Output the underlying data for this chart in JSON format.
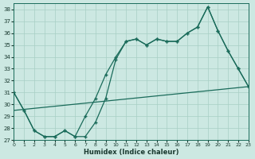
{
  "xlabel": "Humidex (Indice chaleur)",
  "bg_color": "#cce8e2",
  "line_color": "#1a6b5a",
  "grid_color": "#a8cfc5",
  "xlim": [
    0,
    23
  ],
  "ylim": [
    27,
    38.5
  ],
  "yticks": [
    27,
    28,
    29,
    30,
    31,
    32,
    33,
    34,
    35,
    36,
    37,
    38
  ],
  "xticks": [
    0,
    1,
    2,
    3,
    4,
    5,
    6,
    7,
    8,
    9,
    10,
    11,
    12,
    13,
    14,
    15,
    16,
    17,
    18,
    19,
    20,
    21,
    22,
    23
  ],
  "curve1_x": [
    0,
    1,
    2,
    3,
    4,
    5,
    6,
    7,
    8,
    9,
    10,
    11,
    12,
    13,
    14,
    15,
    16,
    17,
    18,
    19,
    20,
    21,
    22,
    23
  ],
  "curve1_y": [
    31.0,
    29.5,
    27.8,
    27.3,
    27.3,
    27.8,
    27.3,
    27.3,
    28.5,
    30.5,
    33.8,
    35.3,
    35.5,
    35.0,
    35.5,
    35.3,
    35.3,
    36.0,
    36.5,
    38.2,
    36.2,
    34.5,
    33.0,
    31.5
  ],
  "curve2_x": [
    0,
    1,
    2,
    3,
    4,
    5,
    6,
    7,
    8,
    9,
    10,
    11,
    12,
    13,
    14,
    15,
    16,
    17,
    18,
    19,
    20,
    21,
    22,
    23
  ],
  "curve2_y": [
    31.0,
    29.5,
    27.8,
    27.3,
    27.3,
    27.8,
    27.3,
    29.0,
    30.5,
    32.5,
    34.0,
    35.3,
    35.5,
    35.0,
    35.5,
    35.3,
    35.3,
    36.0,
    36.5,
    38.2,
    36.2,
    34.5,
    33.0,
    31.5
  ],
  "line_x": [
    0,
    23
  ],
  "line_y": [
    29.5,
    31.5
  ]
}
